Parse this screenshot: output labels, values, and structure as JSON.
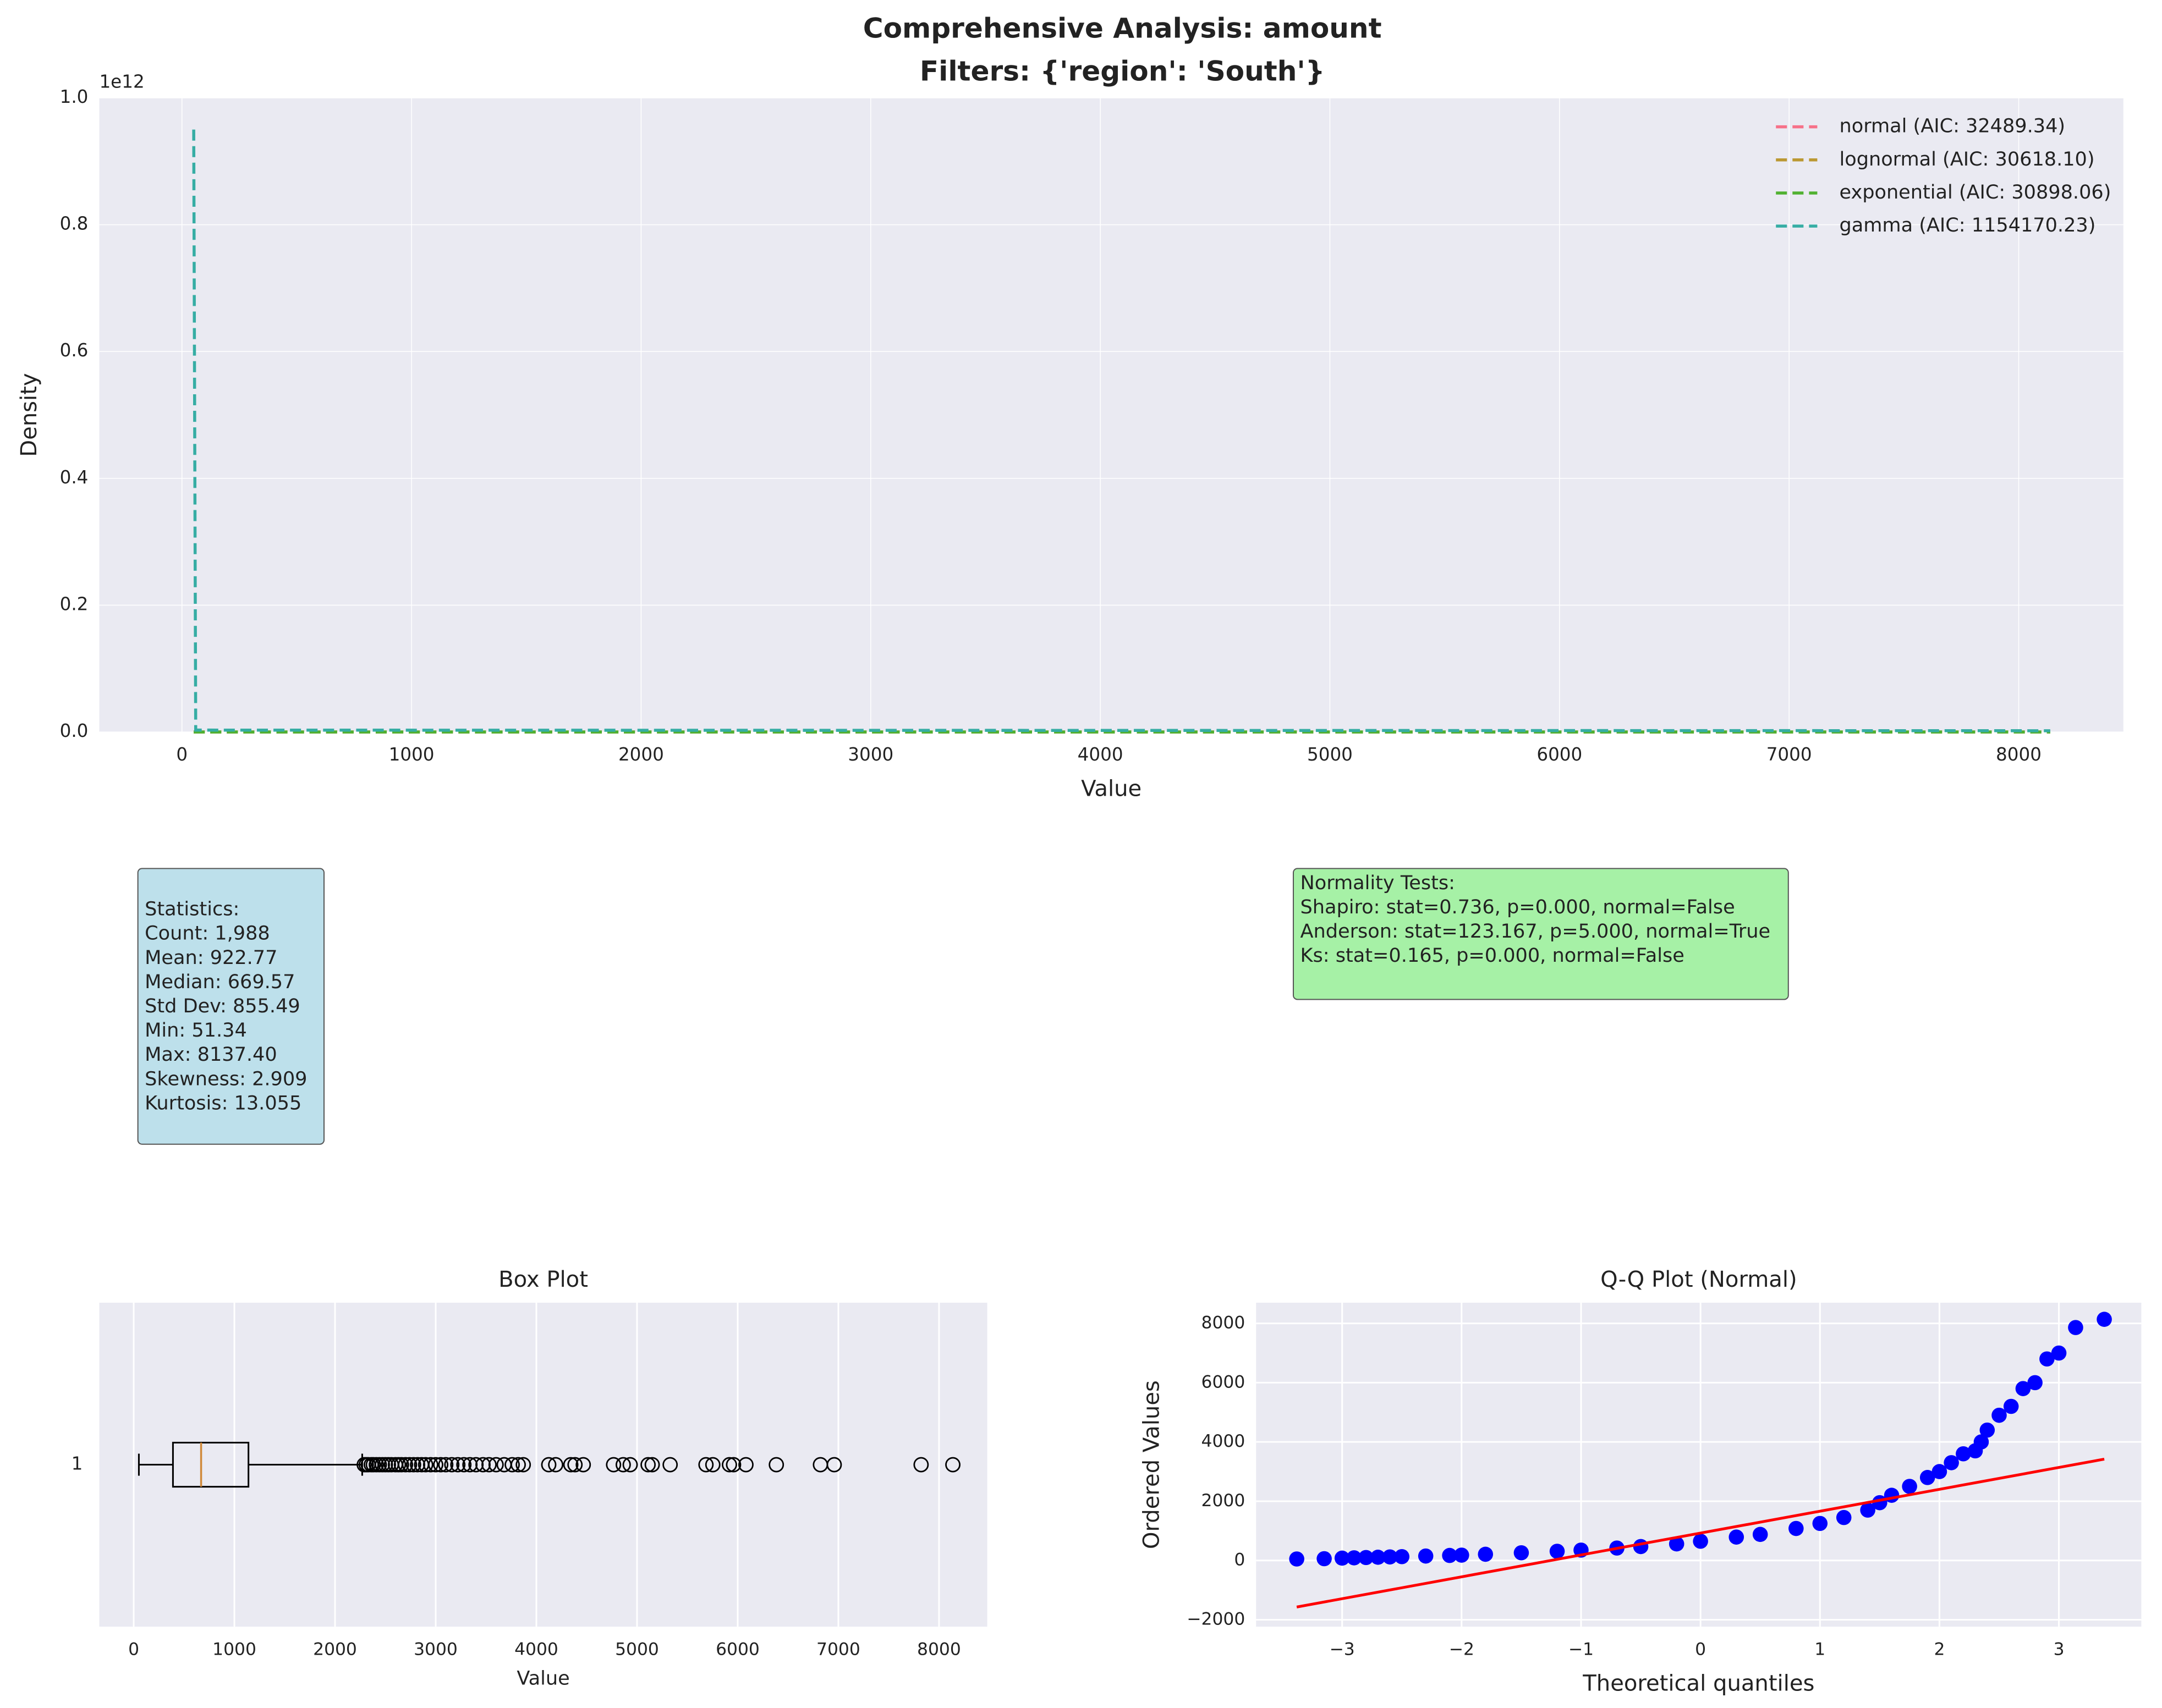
{
  "chart_data": [
    {
      "type": "line",
      "title": "Comprehensive Analysis: amount",
      "subtitle": "Filters: {'region': 'South'}",
      "xlabel": "Value",
      "ylabel": "Density",
      "y_offset_label": "1e12",
      "x": [
        51.34,
        60,
        8137.4
      ],
      "series": [
        {
          "name": "normal (AIC: 32489.34)",
          "color": "#f77189",
          "values": [
            0,
            0,
            0
          ]
        },
        {
          "name": "lognormal (AIC: 30618.10)",
          "color": "#bb9832",
          "values": [
            0,
            0,
            0
          ]
        },
        {
          "name": "exponential (AIC: 30898.06)",
          "color": "#50b131",
          "values": [
            0,
            0,
            0
          ]
        },
        {
          "name": "gamma (AIC: 1154170.23)",
          "color": "#36ada4",
          "values": [
            0.95,
            0.003,
            0.002
          ]
        }
      ],
      "xlim": [
        -360,
        8456
      ],
      "xticks": [
        0,
        1000,
        2000,
        3000,
        4000,
        5000,
        6000,
        7000,
        8000
      ],
      "ylim": [
        0,
        1
      ],
      "yticks": [
        {
          "value": 0,
          "label": "0.0"
        },
        0.2,
        0.4,
        0.6,
        0.8,
        {
          "value": 1,
          "label": "1.0"
        }
      ],
      "grid": true,
      "legend": "upper right",
      "line_style": "dashed"
    },
    {
      "type": "box",
      "title": "Box Plot",
      "xlabel": "Value",
      "categories": [
        "1"
      ],
      "box": {
        "whislo": 51.34,
        "q1": 390,
        "med": 669.57,
        "q3": 1140,
        "whishi": 2270,
        "fliers": [
          2290,
          2310,
          2330,
          2360,
          2380,
          2410,
          2440,
          2470,
          2500,
          2530,
          2560,
          2600,
          2630,
          2660,
          2700,
          2740,
          2780,
          2820,
          2860,
          2900,
          2950,
          3000,
          3050,
          3100,
          3160,
          3220,
          3280,
          3340,
          3400,
          3470,
          3530,
          3600,
          3680,
          3760,
          3820,
          3870,
          4123,
          4192,
          4342,
          4384,
          4466,
          4767,
          4863,
          4932,
          5110,
          5151,
          5329,
          5685,
          5753,
          5918,
          5959,
          6082,
          6384,
          6822,
          6959,
          7822,
          8137.4
        ]
      },
      "box_color": "#000000",
      "median_color": "#d0893a",
      "xlim": [
        -342,
        8479
      ],
      "xticks": [
        0,
        1000,
        2000,
        3000,
        4000,
        5000,
        6000,
        7000,
        8000
      ],
      "grid": true
    },
    {
      "type": "scatter",
      "title": "Q-Q Plot (Normal)",
      "xlabel": "Theoretical quantiles",
      "ylabel": "Ordered Values",
      "points": {
        "color": "#0000ff",
        "x": [
          -3.38,
          -3.15,
          -3.0,
          -2.9,
          -2.8,
          -2.7,
          -2.6,
          -2.5,
          -2.3,
          -2.1,
          -2.0,
          -1.8,
          -1.5,
          -1.2,
          -1.0,
          -0.7,
          -0.5,
          -0.2,
          0,
          0.3,
          0.5,
          0.8,
          1.0,
          1.2,
          1.4,
          1.5,
          1.6,
          1.75,
          1.9,
          2.0,
          2.1,
          2.2,
          2.3,
          2.35,
          2.4,
          2.5,
          2.6,
          2.7,
          2.8,
          2.9,
          3.0,
          3.14,
          3.38
        ],
        "y": [
          51,
          60,
          80,
          90,
          100,
          110,
          120,
          130,
          150,
          170,
          180,
          210,
          260,
          310,
          350,
          420,
          470,
          560,
          650,
          790,
          880,
          1080,
          1250,
          1450,
          1700,
          1950,
          2200,
          2500,
          2800,
          3000,
          3300,
          3600,
          3700,
          4000,
          4400,
          4900,
          5200,
          5800,
          6000,
          6800,
          7000,
          7860,
          8137.4
        ]
      },
      "fit_line": {
        "color": "#ff0000",
        "x": [
          -3.38,
          3.38
        ],
        "y": [
          -1570,
          3420
        ]
      },
      "xlim": [
        -3.72,
        3.69
      ],
      "xticks": [
        {
          "value": -3,
          "label": "−3"
        },
        {
          "value": -2,
          "label": "−2"
        },
        {
          "value": -1,
          "label": "−1"
        },
        0,
        1,
        2,
        3
      ],
      "ylim": [
        -2233,
        8698
      ],
      "yticks": [
        {
          "value": -2000,
          "label": "−2000"
        },
        0,
        2000,
        4000,
        6000,
        8000
      ],
      "grid": true
    }
  ],
  "text_panels": [
    {
      "color": "#add8e6",
      "lines": [
        "Statistics:",
        "Count: 1,988",
        "Mean: 922.77",
        "Median: 669.57",
        "Std Dev: 855.49",
        "Min: 51.34",
        "Max: 8137.40",
        "Skewness: 2.909",
        "Kurtosis: 13.055"
      ]
    },
    {
      "color": "#90ee90",
      "lines": [
        "Normality Tests:",
        "Shapiro: stat=0.736, p=0.000, normal=False",
        "Anderson: stat=123.167, p=5.000, normal=True",
        "Ks: stat=0.165, p=0.000, normal=False"
      ]
    }
  ]
}
